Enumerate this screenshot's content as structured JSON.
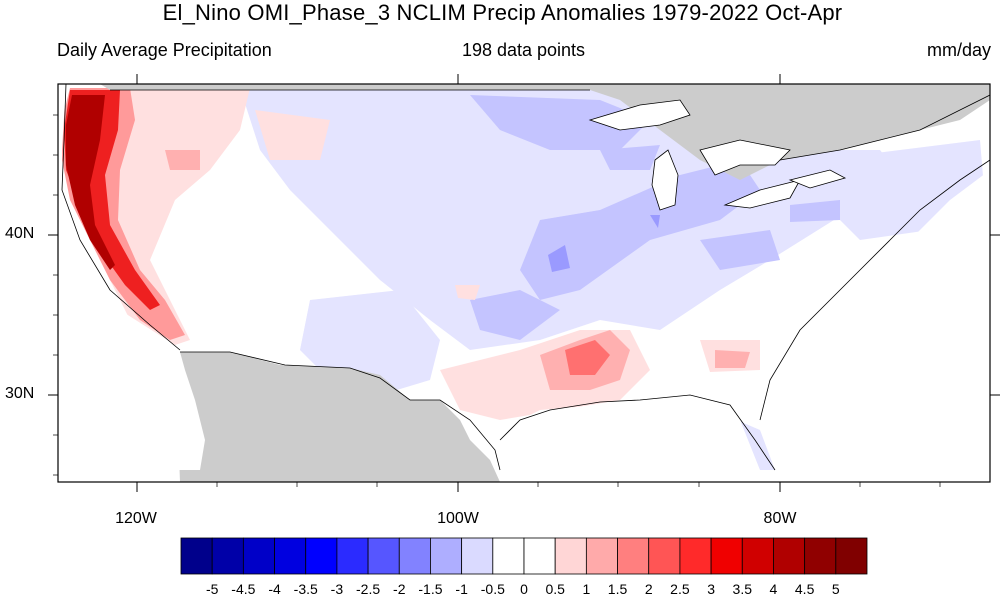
{
  "title": "El_Nino OMI_Phase_3 NCLIM Precip Anomalies 1979-2022 Oct-Apr",
  "subtitle_left": "Daily Average Precipitation",
  "subtitle_center": "198 data points",
  "subtitle_right": "mm/day",
  "lat_labels": [
    "40N",
    "30N"
  ],
  "lon_labels": [
    "120W",
    "100W",
    "80W"
  ],
  "colorbar": {
    "labels": [
      "-5",
      "-4.5",
      "-4",
      "-3.5",
      "-3",
      "-2.5",
      "-2",
      "-1.5",
      "-1",
      "-0.5",
      "0",
      "0.5",
      "1",
      "1.5",
      "2",
      "2.5",
      "3",
      "3.5",
      "4",
      "4.5",
      "5"
    ],
    "colors": [
      "#00008b",
      "#0000a8",
      "#0000c8",
      "#0000e0",
      "#0000ff",
      "#2b2bff",
      "#5656ff",
      "#8282ff",
      "#aeaeff",
      "#dadaff",
      "#ffffff",
      "#ffffff",
      "#ffd6d6",
      "#ffaaaa",
      "#ff7f7f",
      "#ff5555",
      "#ff2a2a",
      "#f00000",
      "#d00000",
      "#b00000",
      "#900000",
      "#800000"
    ]
  },
  "icons": {
    "land_mask": "gray-land-mask"
  },
  "colors": {
    "land_mask": "#cccccc",
    "frame": "#000000"
  }
}
